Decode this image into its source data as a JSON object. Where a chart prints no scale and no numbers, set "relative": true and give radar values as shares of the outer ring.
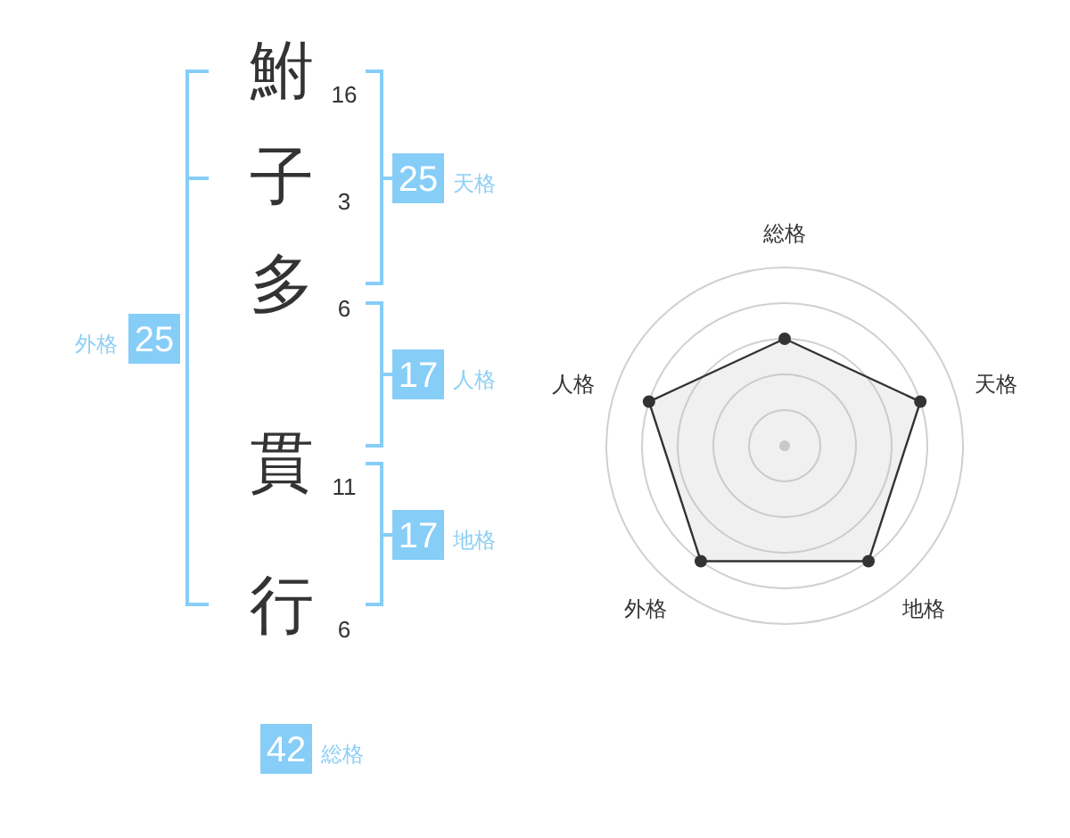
{
  "chart_data": [
    {
      "type": "other",
      "categories": [
        "鮒",
        "子",
        "多",
        "貫",
        "行"
      ],
      "values": [
        16,
        3,
        6,
        11,
        6
      ],
      "data_labels": true,
      "annotations": [
        "25",
        "天格",
        "17",
        "人格",
        "17",
        "地格",
        "25",
        "外格",
        "42",
        "総格"
      ]
    },
    {
      "type": "radar",
      "categories": [
        "総格",
        "天格",
        "地格",
        "外格",
        "人格"
      ],
      "relative": true,
      "grid": true,
      "marker": "circle",
      "series": [
        {
          "color": "#333333",
          "values": [
            0.6,
            0.8,
            0.8,
            0.8,
            0.8
          ]
        }
      ]
    }
  ]
}
